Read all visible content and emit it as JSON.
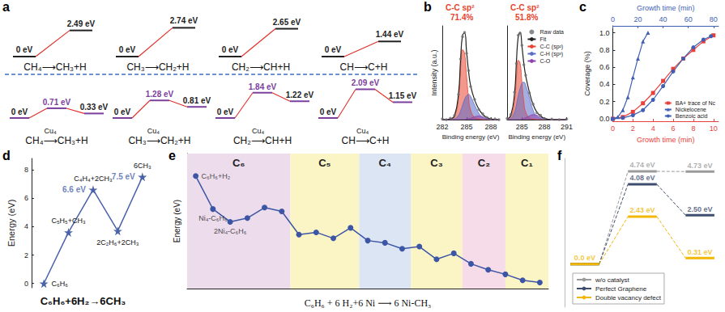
{
  "panel_a": {
    "panel": "a",
    "top_row": [
      {
        "reaction": "CH₄⟶CH₃+H",
        "levels": [
          0,
          2.49
        ],
        "labels": [
          "0 eV",
          "2.49 eV"
        ]
      },
      {
        "reaction": "CH₃⟶CH₂+H",
        "levels": [
          0,
          2.74
        ],
        "labels": [
          "0 eV",
          "2.74 eV"
        ]
      },
      {
        "reaction": "CH₂⟶CH+H",
        "levels": [
          0,
          2.65
        ],
        "labels": [
          "0 eV",
          "2.65 eV"
        ]
      },
      {
        "reaction": "CH⟶C+H",
        "levels": [
          0,
          1.44
        ],
        "labels": [
          "0 eV",
          "1.44 eV"
        ]
      }
    ],
    "bottom_row": [
      {
        "reaction": "CH₄⟶CH₃+H",
        "catalyst": "Cu₄",
        "levels": [
          0,
          0.71,
          0.33
        ],
        "labels": [
          "0 eV",
          "0.71 eV",
          "0.33 eV"
        ]
      },
      {
        "reaction": "CH₃⟶CH₂+H",
        "catalyst": "Cu₄",
        "levels": [
          0,
          1.28,
          0.81
        ],
        "labels": [
          "0 eV",
          "1.28 eV",
          "0.81 eV"
        ]
      },
      {
        "reaction": "CH₂⟶CH+H",
        "catalyst": "Cu₄",
        "levels": [
          0,
          1.84,
          1.22
        ],
        "labels": [
          "0 eV",
          "1.84 eV",
          "1.22 eV"
        ]
      },
      {
        "reaction": "CH⟶C+H",
        "catalyst": "Cu₄",
        "levels": [
          0,
          2.09,
          1.15
        ],
        "labels": [
          "0 eV",
          "2.09 eV",
          "1.15 eV"
        ]
      }
    ]
  },
  "chart_data": [
    {
      "panel": "b",
      "type": "line",
      "xlabel": "Binding energy (eV)",
      "ylabel": "Intensity (a.u.)",
      "tick_labels": "x",
      "legend": "upper right",
      "subplots": [
        {
          "xlim": [
            282,
            289
          ],
          "xticks": [
            282,
            285,
            288
          ],
          "ylim": [
            0,
            1.3
          ],
          "yticks": [],
          "annotations": [
            "C-C sp²",
            "71.4%"
          ],
          "x": [
            282,
            282.5,
            283,
            283.5,
            284,
            284.25,
            284.5,
            284.75,
            285,
            285.25,
            285.5,
            286,
            286.5,
            287,
            287.5,
            288,
            288.5,
            289
          ],
          "series": [
            {
              "name": "Raw data",
              "type": "scatter",
              "marker": "circle",
              "color": "#6e6e6e",
              "values": [
                0.01,
                0,
                0.02,
                0.06,
                0.35,
                0.84,
                1.15,
                1.21,
                0.92,
                0.68,
                0.46,
                0.28,
                0.14,
                0.08,
                0.03,
                0.01,
                0.01,
                0
              ]
            },
            {
              "name": "Fit",
              "type": "line",
              "color": "#222222",
              "values": [
                0,
                0,
                0.01,
                0.05,
                0.36,
                0.82,
                1.17,
                1.2,
                0.94,
                0.665,
                0.47,
                0.27,
                0.15,
                0.07,
                0.03,
                0.01,
                0,
                0
              ]
            },
            {
              "name": "C-C (sp²)",
              "type": "area",
              "color": "#e8432e",
              "values": [
                0,
                0,
                0.01,
                0.04,
                0.3,
                0.7,
                0.97,
                0.92,
                0.6,
                0.3,
                0.13,
                0.03,
                0.01,
                0,
                0,
                0,
                0,
                0
              ]
            },
            {
              "name": "C-H (sp³)",
              "type": "area",
              "color": "#5b6cc9",
              "values": [
                0,
                0,
                0,
                0.01,
                0.06,
                0.12,
                0.2,
                0.28,
                0.33,
                0.35,
                0.32,
                0.2,
                0.09,
                0.03,
                0.01,
                0,
                0,
                0
              ]
            },
            {
              "name": "C-O",
              "type": "area",
              "color": "#8e44ad",
              "values": [
                0,
                0,
                0,
                0,
                0,
                0,
                0,
                0,
                0.01,
                0.015,
                0.02,
                0.04,
                0.05,
                0.04,
                0.02,
                0.01,
                0,
                0
              ]
            }
          ]
        },
        {
          "xlim": [
            283,
            291
          ],
          "xticks": [
            285,
            288,
            291
          ],
          "ylim": [
            0,
            1.5
          ],
          "yticks": [],
          "annotations": [
            "C-C sp²",
            "51.8%"
          ],
          "x": [
            283,
            283.5,
            284,
            284.25,
            284.5,
            284.75,
            285,
            285.25,
            285.5,
            286,
            286.5,
            287,
            287.5,
            288,
            289,
            290,
            291
          ],
          "series": [
            {
              "name": "Raw data",
              "type": "scatter",
              "marker": "circle",
              "color": "#6e6e6e",
              "values": [
                0.02,
                0.08,
                0.44,
                0.9,
                1.35,
                1.38,
                1.19,
                0.88,
                0.71,
                0.43,
                0.25,
                0.11,
                0.07,
                0.02,
                0.01,
                0,
                0.01
              ]
            },
            {
              "name": "Fit",
              "type": "line",
              "color": "#222222",
              "values": [
                0.01,
                0.07,
                0.42,
                0.92,
                1.33,
                1.4,
                1.17,
                0.9,
                0.7,
                0.44,
                0.24,
                0.12,
                0.06,
                0.02,
                0,
                0,
                0
              ]
            },
            {
              "name": "C-C (sp²)",
              "type": "area",
              "color": "#e8432e",
              "values": [
                0.01,
                0.05,
                0.3,
                0.68,
                0.95,
                0.9,
                0.58,
                0.28,
                0.12,
                0.03,
                0.01,
                0,
                0,
                0,
                0,
                0,
                0
              ]
            },
            {
              "name": "C-H (sp³)",
              "type": "area",
              "color": "#5b6cc9",
              "values": [
                0,
                0.02,
                0.12,
                0.24,
                0.38,
                0.5,
                0.58,
                0.6,
                0.55,
                0.35,
                0.15,
                0.05,
                0.02,
                0,
                0,
                0,
                0
              ]
            },
            {
              "name": "C-O",
              "type": "area",
              "color": "#8e44ad",
              "values": [
                0,
                0,
                0,
                0,
                0,
                0,
                0.01,
                0.02,
                0.03,
                0.06,
                0.08,
                0.07,
                0.04,
                0.02,
                0,
                0,
                0
              ]
            }
          ]
        }
      ]
    },
    {
      "panel": "c",
      "type": "line",
      "xlabel": "Growth time (min)",
      "x2label": "Growth time (min)",
      "ylabel": "Coverage (%)",
      "xlim": [
        0,
        10.5
      ],
      "xticks": [
        0,
        2,
        4,
        6,
        8,
        10
      ],
      "x2lim": [
        0,
        84
      ],
      "x2ticks": [
        0,
        20,
        40,
        60,
        80
      ],
      "ylim": [
        -0.03,
        1.08
      ],
      "yticks": [
        {
          "value": 0,
          "label": "0.0"
        },
        0.2,
        0.4,
        0.6,
        0.8,
        {
          "value": 1,
          "label": "1.0"
        }
      ],
      "legend": "lower right",
      "series": [
        {
          "name": "BA+ trace of Nc",
          "axis": "x",
          "color": "#e8413c",
          "marker": "square",
          "x": [
            0,
            1,
            2,
            3,
            4,
            5,
            6,
            7,
            8,
            9,
            10
          ],
          "values": [
            0,
            0.02,
            0.08,
            0.18,
            0.3,
            0.44,
            0.58,
            0.7,
            0.8,
            0.9,
            0.97
          ]
        },
        {
          "name": "Nickelocene",
          "axis": "x2",
          "color": "#3f5fb5",
          "marker": "triangle",
          "x": [
            0,
            4,
            8,
            12,
            16,
            20,
            24,
            28
          ],
          "values": [
            0,
            0.02,
            0.1,
            0.25,
            0.48,
            0.7,
            0.9,
            1.0
          ]
        },
        {
          "name": "Benzoic acid",
          "axis": "x2",
          "color": "#3f5fb5",
          "marker": "circle",
          "x": [
            0,
            8,
            16,
            24,
            32,
            40,
            48,
            56,
            64,
            72,
            78
          ],
          "values": [
            0,
            0.01,
            0.04,
            0.1,
            0.22,
            0.38,
            0.55,
            0.7,
            0.83,
            0.92,
            0.96
          ]
        }
      ]
    },
    {
      "panel": "d",
      "type": "line",
      "title": "C₆H₆+6H₂→6CH₃",
      "ylabel": "Energy (eV)",
      "categories": [
        "C₆H₆",
        "C₅H₅+CH₃",
        "C₄H₄+2CH₃",
        "2C₂H₆+2CH₃",
        "6CH₃"
      ],
      "values": [
        0,
        3.6,
        6.6,
        3.7,
        7.5
      ],
      "ylim": [
        -0.3,
        8.8
      ],
      "yticks": [
        0,
        2,
        4,
        6,
        8
      ],
      "color": "#4a62aa",
      "marker": "star",
      "tick_labels": "y",
      "annotations": [
        {
          "category": "C₄H₄+2CH₃",
          "text": "6.6 eV"
        },
        {
          "category": "6CH₃",
          "text": "7.5 eV"
        }
      ]
    },
    {
      "panel": "e",
      "type": "line",
      "xlabel": "C₆H₆ + 6 H₂+6 Ni ⟶ 6 Ni-CH₃",
      "ylabel": "Energy (eV)",
      "x": [
        0,
        1,
        2,
        3,
        4,
        5,
        6,
        7,
        8,
        9,
        10,
        11,
        12,
        13,
        14,
        15,
        16,
        17,
        18,
        19,
        20
      ],
      "values": [
        0,
        -4.4,
        -6.1,
        -5.6,
        -4.2,
        -4.7,
        -7.8,
        -7.5,
        -8.3,
        -6.9,
        -8.6,
        -8.9,
        -9.7,
        -9.4,
        -11.1,
        -10.3,
        -11.7,
        -12.5,
        -13.1,
        -13.9,
        -14.2
      ],
      "xlim": [
        -0.5,
        20.5
      ],
      "xticks": [],
      "ylim": [
        -15,
        3
      ],
      "yticks": [],
      "tick_labels": false,
      "color": "#3c55a5",
      "marker": "circle",
      "bands": [
        {
          "label": "C₆",
          "from": -0.5,
          "to": 5.5,
          "color": "#ecdcec"
        },
        {
          "label": "C₅",
          "from": 5.5,
          "to": 9.5,
          "color": "#fbf5c6"
        },
        {
          "label": "C₄",
          "from": 9.5,
          "to": 12.5,
          "color": "#dbe5f4"
        },
        {
          "label": "C₃",
          "from": 12.5,
          "to": 15.5,
          "color": "#fbf5c6"
        },
        {
          "label": "C₂",
          "from": 15.5,
          "to": 18,
          "color": "#f6dbe8"
        },
        {
          "label": "C₁",
          "from": 18,
          "to": 20.5,
          "color": "#fbf5c6"
        }
      ],
      "annotations": [
        {
          "x": 0,
          "text": "C₆H₆+H₂"
        },
        {
          "x": 1,
          "text": "Ni₄-C₆H₆"
        },
        {
          "x": 2,
          "text": "2Ni₄-C₆H₆"
        }
      ]
    },
    {
      "panel": "f",
      "type": "line",
      "legend": "lower left",
      "tick_labels": false,
      "ylim": [
        -2.2,
        5.4
      ],
      "yticks": [],
      "series": [
        {
          "name": "w/o catalyst",
          "color": "#9b9b9b",
          "values": [
            0,
            4.74,
            4.73
          ],
          "value_labels": [
            null,
            "4.74 eV",
            "4.73 eV"
          ]
        },
        {
          "name": "Perfect Graphene",
          "color": "#3e4c6d",
          "values": [
            0,
            4.08,
            2.5
          ],
          "value_labels": [
            null,
            "4.08 eV",
            "2.50 eV"
          ]
        },
        {
          "name": "Double vacancy defect",
          "color": "#f2b705",
          "values": [
            0,
            2.43,
            0.31
          ],
          "value_labels": [
            "0.0 eV",
            "2.43 eV",
            "0.31 eV"
          ]
        }
      ]
    }
  ]
}
